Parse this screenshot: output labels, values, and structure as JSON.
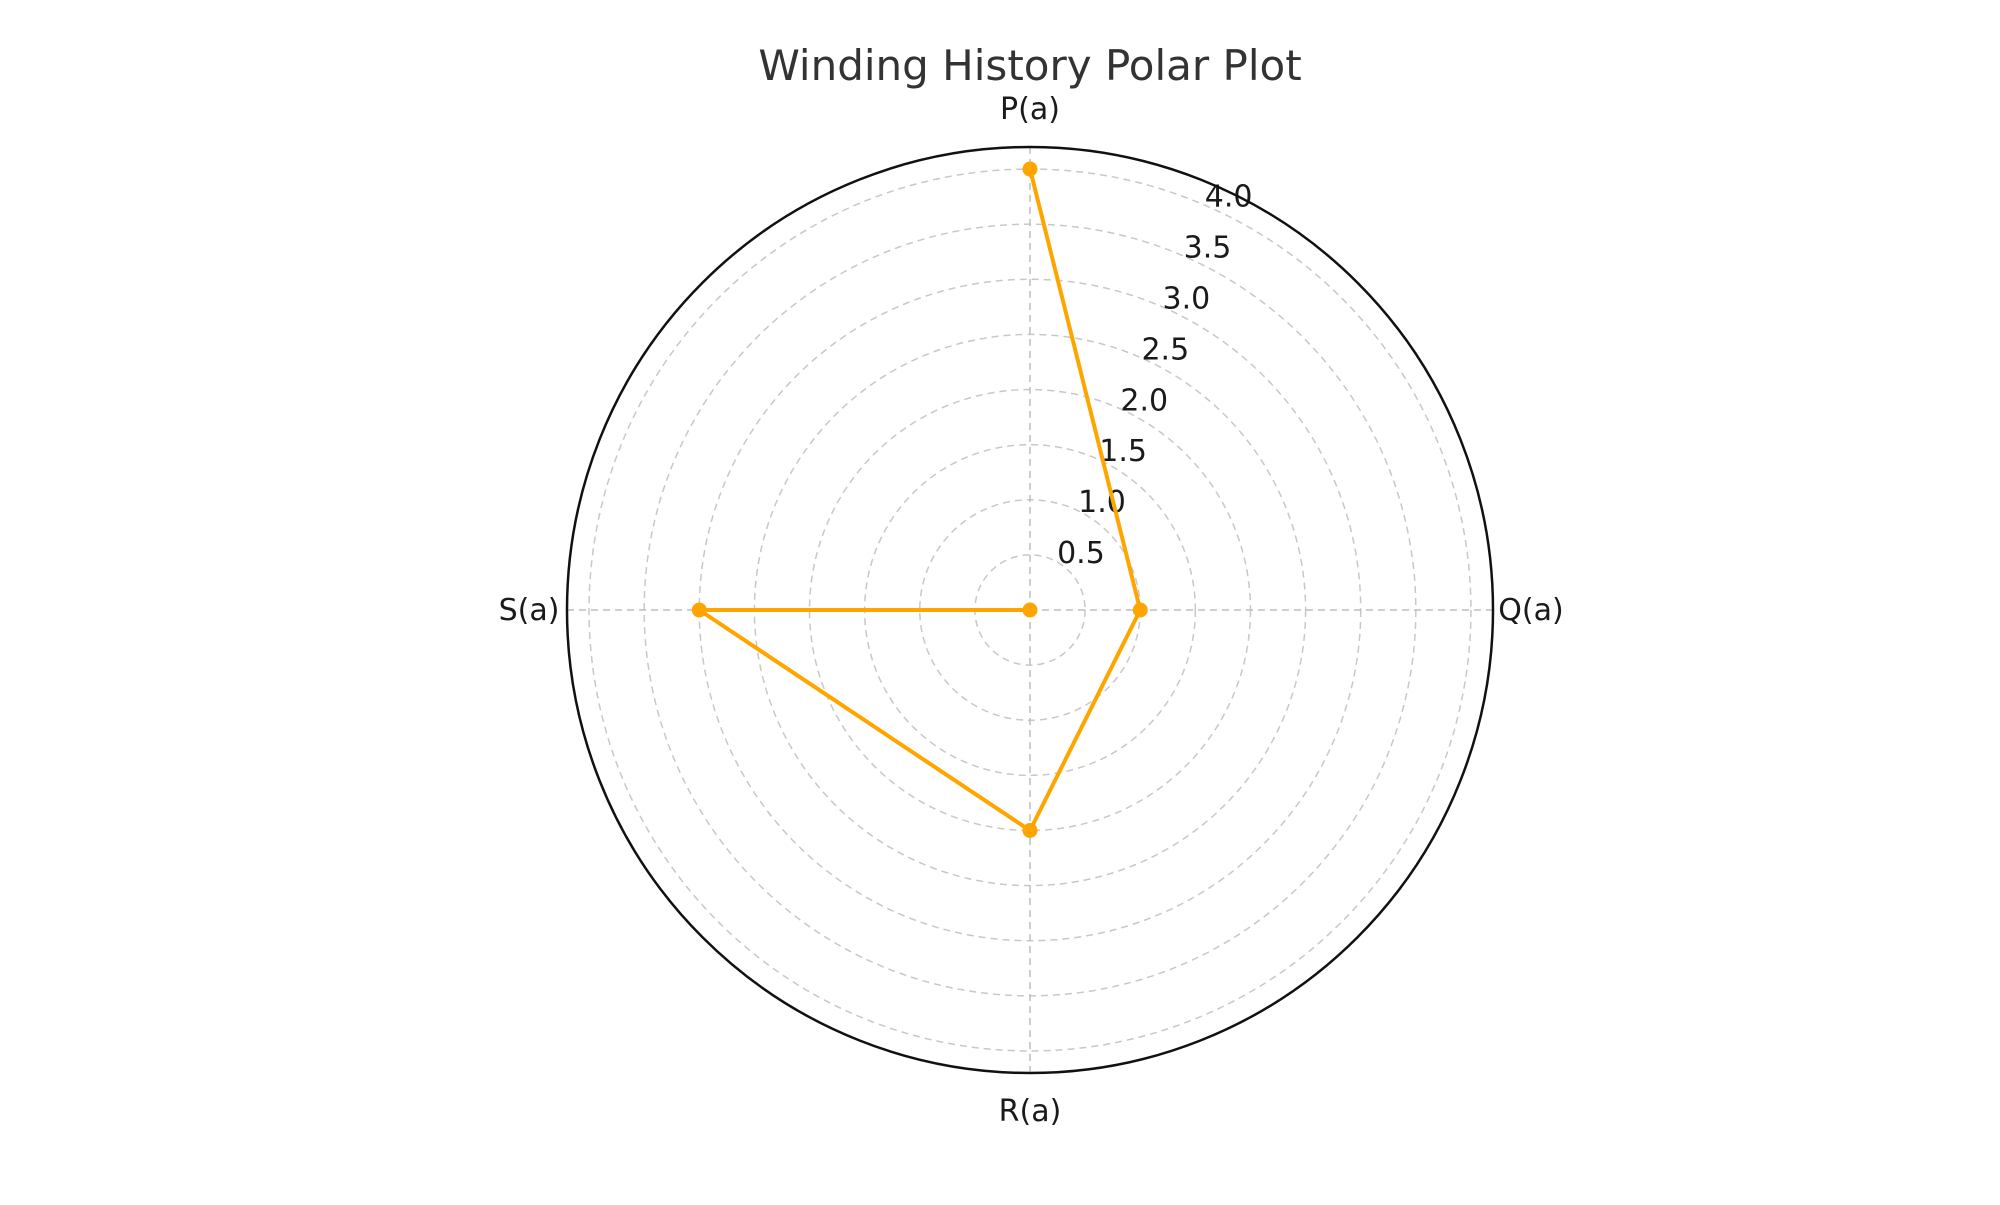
{
  "chart_data": {
    "type": "radar",
    "title": "Winding History Polar Plot",
    "categories": [
      "P(a)",
      "Q(a)",
      "R(a)",
      "S(a)"
    ],
    "series": [
      {
        "values": [
          4.0,
          1.0,
          2.0,
          3.0
        ],
        "start": 0.0,
        "color": "#FFA500"
      }
    ],
    "radial_ticks": [
      "0.5",
      "1.0",
      "1.5",
      "2.0",
      "2.5",
      "3.0",
      "3.5",
      "4.0"
    ],
    "radial_tick_values": [
      0.5,
      1.0,
      1.5,
      2.0,
      2.5,
      3.0,
      3.5,
      4.0
    ],
    "rlim": [
      0,
      4.2
    ],
    "grid": true,
    "direction": "clockwise",
    "zero_location": "top"
  }
}
